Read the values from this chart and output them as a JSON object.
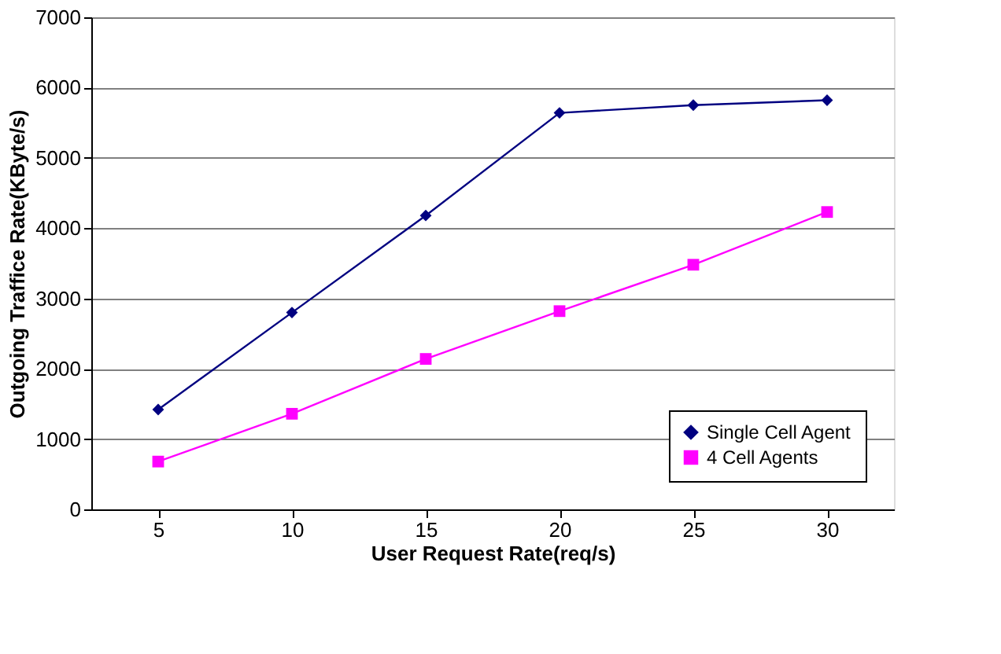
{
  "chart_data": {
    "type": "line",
    "xlabel": "User Request Rate(req/s)",
    "ylabel": "Outgoing Traffice Rate(KByte/s)",
    "categories": [
      "5",
      "10",
      "15",
      "20",
      "25",
      "30"
    ],
    "series": [
      {
        "name": "Single Cell Agent",
        "color": "#000080",
        "marker": "diamond",
        "values": [
          1420,
          2800,
          4180,
          5640,
          5750,
          5820
        ]
      },
      {
        "name": "4 Cell Agents",
        "color": "#ff00ff",
        "marker": "square",
        "values": [
          680,
          1360,
          2140,
          2820,
          3480,
          4230
        ]
      }
    ],
    "ylim": [
      0,
      7000
    ],
    "yticks": [
      0,
      1000,
      2000,
      3000,
      4000,
      5000,
      6000,
      7000
    ],
    "grid": "y",
    "legend": "bottom right",
    "line_style": "solid"
  }
}
